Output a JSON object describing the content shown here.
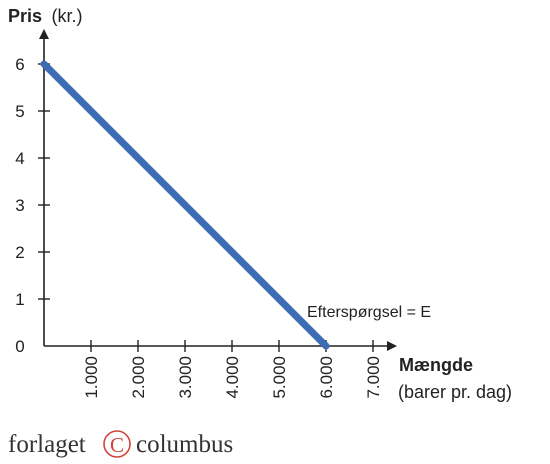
{
  "chart_data": {
    "type": "line",
    "ylabel_bold": "Pris",
    "ylabel_unit": "(kr.)",
    "xlabel_bold": "Mængde",
    "xlabel_unit": "(barer pr. dag)",
    "xlim": [
      0,
      7000
    ],
    "ylim": [
      0,
      6
    ],
    "x_ticks": [
      1000,
      2000,
      3000,
      4000,
      5000,
      6000,
      7000
    ],
    "x_tick_labels": [
      "1.000",
      "2.000",
      "3.000",
      "4.000",
      "5.000",
      "6.000",
      "7.000"
    ],
    "y_ticks": [
      0,
      1,
      2,
      3,
      4,
      5,
      6
    ],
    "y_tick_labels": [
      "0",
      "1",
      "2",
      "3",
      "4",
      "5",
      "6"
    ],
    "grid": false,
    "legend": "none",
    "series": [
      {
        "name": "Efterspørgsel = E",
        "color": "#3d6cb5",
        "x": [
          0,
          6000
        ],
        "y": [
          6,
          0
        ]
      }
    ],
    "annotation": "Efterspørgsel = E"
  },
  "footer": {
    "logo_left": "forlaget",
    "logo_mark": "C",
    "logo_right": "columbus"
  },
  "colors": {
    "axis": "#222222",
    "line": "#3d6cb5"
  }
}
